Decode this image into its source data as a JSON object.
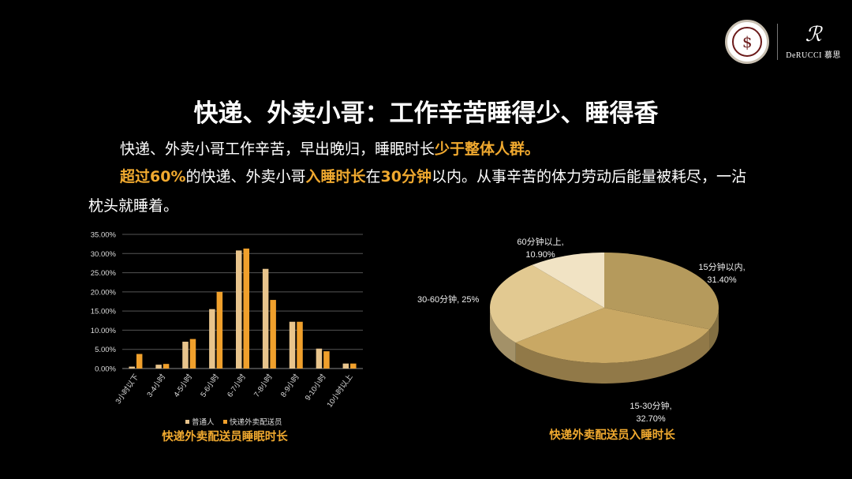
{
  "header": {
    "logo_seal_text": "中国睡眠研究会",
    "brand_name": "DeRUCCI 慕思"
  },
  "title": "快递、外卖小哥：工作辛苦睡得少、睡得香",
  "paragraph1": {
    "text": "快递、外卖小哥工作辛苦，早出晚归，睡眠时长",
    "highlight": "少于整体人群。"
  },
  "paragraph2": {
    "seg1_hl": "超过60%",
    "seg2": "的快递、外卖小哥",
    "seg3_hl": "入睡时长",
    "seg4": "在",
    "seg5_hl": "30分钟",
    "seg6": "以内。从事辛苦的体力劳动后能量被耗尽，一沾",
    "line2": "枕头就睡着。"
  },
  "colors": {
    "highlight": "#f0a92f",
    "series1": "#e8c48c",
    "series2": "#f0a02c"
  },
  "chart_data": [
    {
      "type": "bar",
      "title": "快递外卖配送员睡眠时长",
      "categories": [
        "3小时以下",
        "3-4小时",
        "4-5小时",
        "5-6小时",
        "6-7小时",
        "7-8小时",
        "8-9小时",
        "9-10小时",
        "10小时以上"
      ],
      "series": [
        {
          "name": "普通人",
          "values": [
            0.5,
            1.0,
            7.0,
            15.5,
            30.8,
            26.0,
            12.2,
            5.2,
            1.3
          ]
        },
        {
          "name": "快递外卖配送员",
          "values": [
            3.8,
            1.2,
            7.7,
            20.0,
            31.3,
            17.9,
            12.2,
            4.5,
            1.3
          ]
        }
      ],
      "yticks": [
        "0.00%",
        "5.00%",
        "10.00%",
        "15.00%",
        "20.00%",
        "25.00%",
        "30.00%",
        "35.00%"
      ],
      "ylim": [
        0,
        35
      ],
      "grid": true,
      "legend": "bottom"
    },
    {
      "type": "pie",
      "title": "快递外卖配送员入睡时长",
      "slices": [
        {
          "label": "15分钟以内,",
          "value_label": "31.40%",
          "value": 31.4,
          "color": "#b59a5c"
        },
        {
          "label": "15-30分钟,",
          "value_label": "32.70%",
          "value": 32.7,
          "color": "#c9a864"
        },
        {
          "label": "30-60分钟, 25%",
          "value_label": "",
          "value": 25.0,
          "color": "#e2c991"
        },
        {
          "label": "60分钟以上,",
          "value_label": "10.90%",
          "value": 10.9,
          "color": "#f1e3c4"
        }
      ]
    }
  ]
}
